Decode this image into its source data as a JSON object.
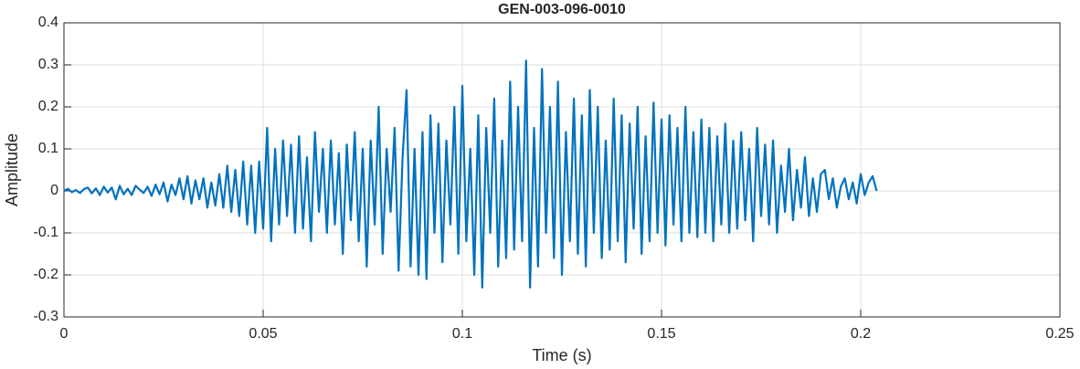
{
  "chart_data": {
    "type": "line",
    "title": "GEN-003-096-0010",
    "x_label": "Time (s)",
    "y_label": "Amplitude",
    "color": "#0072bd",
    "grid": true,
    "xlim": [
      0,
      0.25
    ],
    "xticks": [
      0,
      0.05,
      0.1,
      0.15,
      0.2,
      0.25
    ],
    "ylim": [
      -0.3,
      0.4
    ],
    "yticks": [
      -0.3,
      -0.2,
      -0.1,
      0,
      0.1,
      0.2,
      0.3,
      0.4
    ],
    "x": [
      0,
      0.001,
      0.002,
      0.003,
      0.004,
      0.005,
      0.006,
      0.007,
      0.008,
      0.009,
      0.01,
      0.011,
      0.012,
      0.013,
      0.014,
      0.015,
      0.016,
      0.017,
      0.018,
      0.019,
      0.02,
      0.021,
      0.022,
      0.023,
      0.024,
      0.025,
      0.026,
      0.027,
      0.028,
      0.029,
      0.03,
      0.031,
      0.032,
      0.033,
      0.034,
      0.035,
      0.036,
      0.037,
      0.038,
      0.039,
      0.04,
      0.041,
      0.042,
      0.043,
      0.044,
      0.045,
      0.046,
      0.047,
      0.048,
      0.049,
      0.05,
      0.051,
      0.052,
      0.053,
      0.054,
      0.055,
      0.056,
      0.057,
      0.058,
      0.059,
      0.06,
      0.061,
      0.062,
      0.063,
      0.064,
      0.065,
      0.066,
      0.067,
      0.068,
      0.069,
      0.07,
      0.071,
      0.072,
      0.073,
      0.074,
      0.075,
      0.076,
      0.077,
      0.078,
      0.079,
      0.08,
      0.081,
      0.082,
      0.083,
      0.084,
      0.085,
      0.086,
      0.087,
      0.088,
      0.089,
      0.09,
      0.091,
      0.092,
      0.093,
      0.094,
      0.095,
      0.096,
      0.097,
      0.098,
      0.099,
      0.1,
      0.101,
      0.102,
      0.103,
      0.104,
      0.105,
      0.106,
      0.107,
      0.108,
      0.109,
      0.11,
      0.111,
      0.112,
      0.113,
      0.114,
      0.115,
      0.116,
      0.117,
      0.118,
      0.119,
      0.12,
      0.121,
      0.122,
      0.123,
      0.124,
      0.125,
      0.126,
      0.127,
      0.128,
      0.129,
      0.13,
      0.131,
      0.132,
      0.133,
      0.134,
      0.135,
      0.136,
      0.137,
      0.138,
      0.139,
      0.14,
      0.141,
      0.142,
      0.143,
      0.144,
      0.145,
      0.146,
      0.147,
      0.148,
      0.149,
      0.15,
      0.151,
      0.152,
      0.153,
      0.154,
      0.155,
      0.156,
      0.157,
      0.158,
      0.159,
      0.16,
      0.161,
      0.162,
      0.163,
      0.164,
      0.165,
      0.166,
      0.167,
      0.168,
      0.169,
      0.17,
      0.171,
      0.172,
      0.173,
      0.174,
      0.175,
      0.176,
      0.177,
      0.178,
      0.179,
      0.18,
      0.181,
      0.182,
      0.183,
      0.184,
      0.185,
      0.186,
      0.187,
      0.188,
      0.189,
      0.19,
      0.191,
      0.192,
      0.193,
      0.194,
      0.195,
      0.196,
      0.197,
      0.198,
      0.199,
      0.2,
      0.201,
      0.202,
      0.203,
      0.204
    ],
    "values": [
      0,
      0.005,
      -0.003,
      0.002,
      -0.005,
      0.004,
      0.008,
      -0.006,
      0.006,
      -0.01,
      0.01,
      -0.004,
      0.008,
      -0.02,
      0.012,
      -0.008,
      0.005,
      -0.01,
      0.012,
      0.003,
      -0.005,
      0.01,
      -0.012,
      0.015,
      -0.008,
      0.02,
      -0.025,
      0.015,
      -0.01,
      0.03,
      -0.02,
      0.035,
      -0.03,
      0.025,
      -0.02,
      0.03,
      -0.04,
      0.02,
      -0.035,
      0.04,
      -0.04,
      0.06,
      -0.05,
      0.05,
      -0.06,
      0.07,
      -0.08,
      0.06,
      -0.1,
      0.07,
      -0.09,
      0.15,
      -0.12,
      0.1,
      -0.08,
      0.12,
      -0.06,
      0.11,
      -0.1,
      0.13,
      -0.09,
      0.08,
      -0.12,
      0.14,
      -0.05,
      0.1,
      -0.1,
      0.12,
      -0.08,
      0.09,
      -0.15,
      0.11,
      -0.07,
      0.14,
      -0.12,
      0.1,
      -0.18,
      0.12,
      -0.08,
      0.2,
      -0.15,
      0.1,
      -0.05,
      0.15,
      -0.19,
      0.08,
      0.24,
      -0.18,
      0.1,
      -0.2,
      0.14,
      -0.21,
      0.18,
      -0.1,
      0.16,
      -0.17,
      0.12,
      -0.08,
      0.2,
      -0.15,
      0.25,
      -0.12,
      0.1,
      -0.2,
      0.18,
      -0.23,
      0.15,
      -0.1,
      0.22,
      -0.18,
      0.12,
      -0.16,
      0.26,
      -0.14,
      0.2,
      -0.12,
      0.31,
      -0.23,
      0.15,
      -0.18,
      0.29,
      -0.1,
      0.2,
      -0.16,
      0.26,
      -0.2,
      0.14,
      -0.12,
      0.22,
      -0.15,
      0.18,
      -0.18,
      0.24,
      -0.1,
      0.2,
      -0.16,
      0.12,
      -0.14,
      0.22,
      -0.12,
      0.18,
      -0.17,
      0.16,
      -0.09,
      0.2,
      -0.15,
      0.13,
      -0.12,
      0.21,
      -0.1,
      0.17,
      -0.13,
      0.18,
      -0.08,
      0.15,
      -0.12,
      0.2,
      -0.1,
      0.14,
      -0.11,
      0.17,
      -0.1,
      0.15,
      -0.12,
      0.13,
      -0.08,
      0.16,
      -0.1,
      0.12,
      -0.09,
      0.14,
      -0.07,
      0.1,
      -0.12,
      0.15,
      -0.06,
      0.11,
      -0.08,
      0.12,
      -0.1,
      0.06,
      -0.05,
      0.1,
      -0.07,
      0.05,
      -0.04,
      0.08,
      -0.06,
      0.03,
      -0.05,
      0.04,
      0.05,
      -0.02,
      0.03,
      -0.04,
      0.01,
      0.03,
      -0.02,
      0.02,
      -0.03,
      0.04,
      -0.01,
      0.02,
      0.035,
      0
    ]
  }
}
